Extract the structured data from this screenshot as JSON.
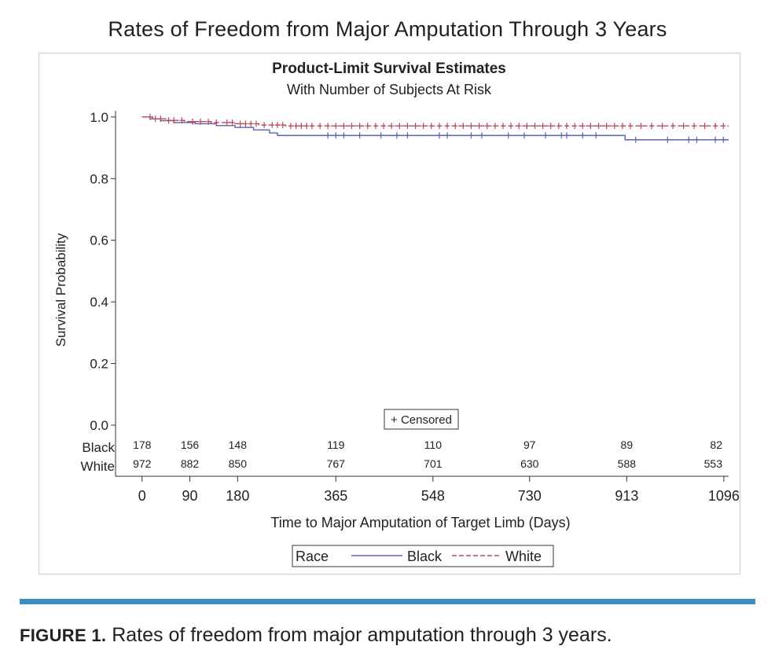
{
  "page_title": "Rates of Freedom from Major Amputation Through 3 Years",
  "caption": {
    "label": "FIGURE 1.",
    "text": " Rates of freedom from major amputation through 3 years."
  },
  "chart_data": {
    "type": "line",
    "title": "Product-Limit Survival Estimates",
    "subtitle": "With Number of Subjects At Risk",
    "xlabel": "Time to Major Amputation of Target Limb (Days)",
    "ylabel": "Survival Probability",
    "xlim": [
      -50,
      1105
    ],
    "ylim": [
      0.0,
      1.02
    ],
    "xticks": [
      0,
      90,
      180,
      365,
      548,
      730,
      913,
      1096
    ],
    "yticks": [
      "0.0",
      "0.2",
      "0.4",
      "0.6",
      "0.8",
      "1.0"
    ],
    "yticks_values": [
      0.0,
      0.2,
      0.4,
      0.6,
      0.8,
      1.0
    ],
    "censored_legend": "+ Censored",
    "legend": {
      "title": "Race",
      "placement": "bottom-center",
      "entries": [
        {
          "name": "Black",
          "color": "#5a61b5",
          "style": "solid"
        },
        {
          "name": "White",
          "color": "#b84a5a",
          "style": "dashed"
        }
      ]
    },
    "series": [
      {
        "name": "Black",
        "color": "#5a61b5",
        "steps": [
          [
            0,
            1.0
          ],
          [
            15,
            0.994
          ],
          [
            35,
            0.988
          ],
          [
            60,
            0.982
          ],
          [
            100,
            0.978
          ],
          [
            140,
            0.972
          ],
          [
            175,
            0.966
          ],
          [
            210,
            0.958
          ],
          [
            240,
            0.948
          ],
          [
            255,
            0.94
          ],
          [
            900,
            0.94
          ],
          [
            910,
            0.926
          ],
          [
            1105,
            0.926
          ]
        ],
        "censored": [
          350,
          365,
          380,
          410,
          450,
          480,
          500,
          560,
          575,
          620,
          640,
          690,
          720,
          760,
          790,
          800,
          830,
          855,
          930,
          990,
          1030,
          1045,
          1080,
          1095
        ]
      },
      {
        "name": "White",
        "color": "#b84a5a",
        "steps": [
          [
            0,
            1.0
          ],
          [
            20,
            0.994
          ],
          [
            45,
            0.989
          ],
          [
            80,
            0.985
          ],
          [
            130,
            0.982
          ],
          [
            175,
            0.978
          ],
          [
            220,
            0.974
          ],
          [
            270,
            0.971
          ],
          [
            1105,
            0.971
          ]
        ],
        "censored": [
          15,
          25,
          35,
          50,
          60,
          75,
          95,
          110,
          125,
          140,
          160,
          170,
          185,
          195,
          205,
          215,
          230,
          245,
          255,
          265,
          280,
          290,
          300,
          310,
          320,
          335,
          350,
          365,
          380,
          395,
          410,
          425,
          440,
          455,
          470,
          485,
          500,
          515,
          530,
          545,
          560,
          575,
          590,
          605,
          620,
          635,
          650,
          665,
          680,
          695,
          710,
          725,
          740,
          755,
          770,
          785,
          800,
          815,
          830,
          845,
          860,
          875,
          890,
          905,
          920,
          940,
          960,
          980,
          1000,
          1020,
          1040,
          1060,
          1080,
          1095
        ]
      }
    ],
    "at_risk": {
      "times": [
        0,
        90,
        180,
        365,
        548,
        730,
        913,
        1096
      ],
      "groups": [
        {
          "name": "Black",
          "counts": [
            "178",
            "156",
            "148",
            "119",
            "110",
            "97",
            "89",
            "82"
          ]
        },
        {
          "name": "White",
          "counts": [
            "972",
            "882",
            "850",
            "767",
            "701",
            "630",
            "588",
            "553"
          ]
        }
      ]
    }
  }
}
